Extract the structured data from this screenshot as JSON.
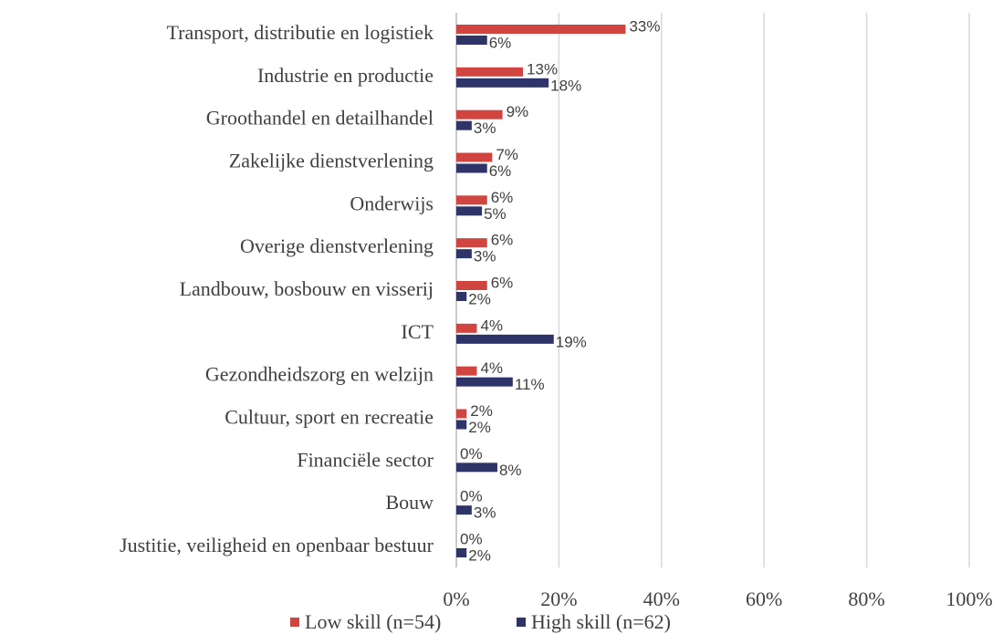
{
  "chart_data": {
    "type": "barh",
    "categories": [
      "Transport, distributie en logistiek",
      "Industrie en productie",
      "Groothandel en detailhandel",
      "Zakelijke dienstverlening",
      "Onderwijs",
      "Overige dienstverlening",
      "Landbouw, bosbouw en visserij",
      "ICT",
      "Gezondheidszorg en welzijn",
      "Cultuur, sport en recreatie",
      "Financiële sector",
      "Bouw",
      "Justitie, veiligheid en openbaar bestuur"
    ],
    "series": [
      {
        "name": "Low skill (n=54)",
        "color": "#d0453f",
        "values": [
          33,
          13,
          9,
          7,
          6,
          6,
          6,
          4,
          4,
          2,
          0,
          0,
          0
        ],
        "value_labels": [
          "33%",
          "13%",
          "9%",
          "7%",
          "6%",
          "6%",
          "6%",
          "4%",
          "4%",
          "2%",
          "0%",
          "0%",
          "0%"
        ]
      },
      {
        "name": "High skill (n=62)",
        "color": "#2e3468",
        "values": [
          6,
          18,
          3,
          6,
          5,
          3,
          2,
          19,
          11,
          2,
          8,
          3,
          2
        ],
        "value_labels": [
          "6%",
          "18%",
          "3%",
          "6%",
          "5%",
          "3%",
          "2%",
          "19%",
          "11%",
          "2%",
          "8%",
          "3%",
          "2%"
        ]
      }
    ],
    "xlim": [
      0,
      100
    ],
    "xticks": [
      {
        "value": 0,
        "label": "0%"
      },
      {
        "value": 20,
        "label": "20%"
      },
      {
        "value": 40,
        "label": "40%"
      },
      {
        "value": 60,
        "label": "60%"
      },
      {
        "value": 80,
        "label": "80%"
      },
      {
        "value": 100,
        "label": "100%"
      }
    ],
    "grid": true,
    "legend": "bottom"
  }
}
